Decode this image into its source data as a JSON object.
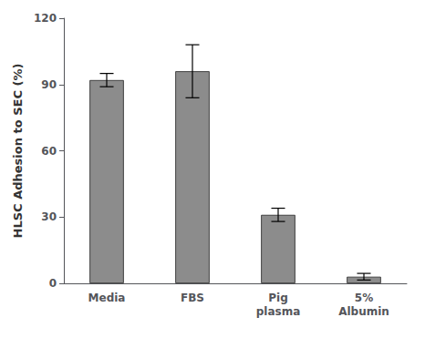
{
  "chart_data": {
    "type": "bar",
    "categories": [
      "Media",
      "FBS",
      "Pig\nplasma",
      "5%\nAlbumin"
    ],
    "values": [
      92,
      96,
      31,
      3
    ],
    "errors": [
      3,
      12,
      3,
      1.5
    ],
    "color": "#8c8c8c",
    "ylabel": "HLSC Adhesion to SEC (%)",
    "ylim": [
      0,
      120
    ],
    "yticks": [
      0,
      30,
      60,
      90,
      120
    ],
    "grid": false
  }
}
